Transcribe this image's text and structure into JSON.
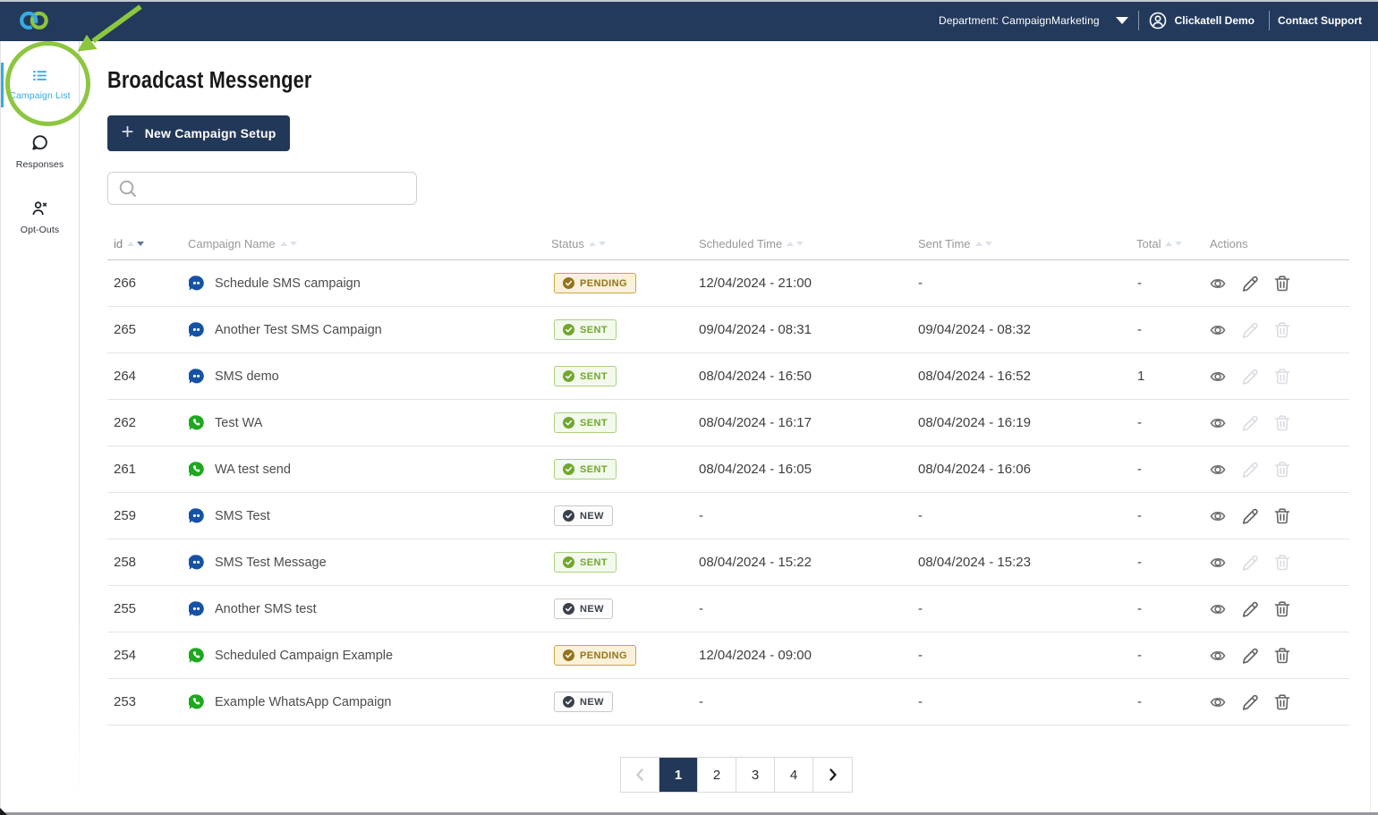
{
  "topbar": {
    "department_label": "Department: CampaignMarketing",
    "user_name": "Clickatell Demo",
    "support_label": "Contact Support",
    "background_color": "#243a5c",
    "logo_icon": "clickatell-interlocked-rings",
    "logo_colors": {
      "left_ring": "#35ace2",
      "right_ring": "#8dc63f"
    }
  },
  "sidebar": {
    "items": [
      {
        "label": "Campaign List",
        "icon": "list-icon",
        "active": true
      },
      {
        "label": "Responses",
        "icon": "chat-bubble-icon",
        "active": false
      },
      {
        "label": "Opt-Outs",
        "icon": "person-remove-icon",
        "active": false
      }
    ],
    "active_color": "#33ace2"
  },
  "annotation": {
    "shape": "circle-with-arrow",
    "color": "#8dc63f",
    "target": "Campaign List"
  },
  "page": {
    "title": "Broadcast Messenger",
    "new_campaign_button": "New Campaign Setup",
    "search_placeholder": ""
  },
  "table": {
    "columns": [
      {
        "key": "id",
        "label": "id",
        "sortable": true,
        "sort": "desc"
      },
      {
        "key": "name",
        "label": "Campaign Name",
        "sortable": true,
        "sort": null
      },
      {
        "key": "status",
        "label": "Status",
        "sortable": true,
        "sort": null
      },
      {
        "key": "scheduled",
        "label": "Scheduled Time",
        "sortable": true,
        "sort": null
      },
      {
        "key": "sent",
        "label": "Sent Time",
        "sortable": true,
        "sort": null
      },
      {
        "key": "total",
        "label": "Total",
        "sortable": true,
        "sort": null
      },
      {
        "key": "actions",
        "label": "Actions",
        "sortable": false,
        "sort": null
      }
    ],
    "rows": [
      {
        "id": "266",
        "channel": "sms",
        "name": "Schedule SMS campaign",
        "status": "PENDING",
        "status_variant": "pending",
        "scheduled": "12/04/2024 - 21:00",
        "sent": "-",
        "total": "-",
        "edit_enabled": true,
        "delete_enabled": true
      },
      {
        "id": "265",
        "channel": "sms",
        "name": "Another Test SMS Campaign",
        "status": "SENT",
        "status_variant": "sent",
        "scheduled": "09/04/2024 - 08:31",
        "sent": "09/04/2024 - 08:32",
        "total": "-",
        "edit_enabled": false,
        "delete_enabled": false
      },
      {
        "id": "264",
        "channel": "sms",
        "name": "SMS demo",
        "status": "SENT",
        "status_variant": "sent",
        "scheduled": "08/04/2024 - 16:50",
        "sent": "08/04/2024 - 16:52",
        "total": "1",
        "edit_enabled": false,
        "delete_enabled": false
      },
      {
        "id": "262",
        "channel": "whatsapp",
        "name": "Test WA",
        "status": "SENT",
        "status_variant": "sent",
        "scheduled": "08/04/2024 - 16:17",
        "sent": "08/04/2024 - 16:19",
        "total": "-",
        "edit_enabled": false,
        "delete_enabled": false
      },
      {
        "id": "261",
        "channel": "whatsapp",
        "name": "WA test send",
        "status": "SENT",
        "status_variant": "sent",
        "scheduled": "08/04/2024 - 16:05",
        "sent": "08/04/2024 - 16:06",
        "total": "-",
        "edit_enabled": false,
        "delete_enabled": false
      },
      {
        "id": "259",
        "channel": "sms",
        "name": "SMS Test",
        "status": "NEW",
        "status_variant": "new",
        "scheduled": "-",
        "sent": "-",
        "total": "-",
        "edit_enabled": true,
        "delete_enabled": true
      },
      {
        "id": "258",
        "channel": "sms",
        "name": "SMS Test Message",
        "status": "SENT",
        "status_variant": "sent",
        "scheduled": "08/04/2024 - 15:22",
        "sent": "08/04/2024 - 15:23",
        "total": "-",
        "edit_enabled": false,
        "delete_enabled": false
      },
      {
        "id": "255",
        "channel": "sms",
        "name": "Another SMS test",
        "status": "NEW",
        "status_variant": "new",
        "scheduled": "-",
        "sent": "-",
        "total": "-",
        "edit_enabled": true,
        "delete_enabled": true
      },
      {
        "id": "254",
        "channel": "whatsapp",
        "name": "Scheduled Campaign Example",
        "status": "PENDING",
        "status_variant": "pending",
        "scheduled": "12/04/2024 - 09:00",
        "sent": "-",
        "total": "-",
        "edit_enabled": true,
        "delete_enabled": true
      },
      {
        "id": "253",
        "channel": "whatsapp",
        "name": "Example WhatsApp Campaign",
        "status": "NEW",
        "status_variant": "new",
        "scheduled": "-",
        "sent": "-",
        "total": "-",
        "edit_enabled": true,
        "delete_enabled": true
      }
    ],
    "status_colors": {
      "pending": {
        "border": "#cda53d",
        "background": "#faf1da",
        "text": "#93731b"
      },
      "sent": {
        "border": "#abd07f",
        "background": "#f3f9ec",
        "text": "#71a62f"
      },
      "new": {
        "border": "#c6c7c9",
        "background": "#fcfcfc",
        "text": "#3c434c"
      }
    },
    "channel_colors": {
      "sms": "#1452a5",
      "whatsapp": "#1da81f"
    }
  },
  "pagination": {
    "prev_enabled": false,
    "pages": [
      "1",
      "2",
      "3",
      "4"
    ],
    "current": "1",
    "next_enabled": true,
    "active_color": "#223858"
  }
}
